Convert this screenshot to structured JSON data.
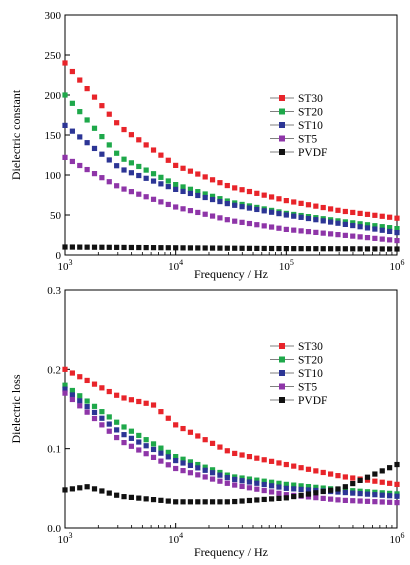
{
  "chart_data": [
    {
      "type": "scatter",
      "xscale": "log",
      "xlim": [
        1000,
        1000000
      ],
      "ylim": [
        0,
        300
      ],
      "xlabel": "Frequency / Hz",
      "ylabel": "Dielectric constant",
      "x_ticks": [
        1000,
        10000,
        100000,
        1000000
      ],
      "x_tick_labels": [
        {
          "base": "10",
          "exp": "3"
        },
        {
          "base": "10",
          "exp": "4"
        },
        {
          "base": "10",
          "exp": "5"
        },
        {
          "base": "10",
          "exp": "6"
        }
      ],
      "y_ticks": [
        0,
        50,
        100,
        150,
        200,
        250,
        300
      ],
      "y_tick_labels": [
        "0",
        "50",
        "100",
        "150",
        "200",
        "250",
        "300"
      ],
      "legend_position": "right",
      "series": [
        {
          "name": "ST30",
          "color": "#e8242a",
          "x_log10": [
            3.0,
            3.5,
            4.0,
            4.5,
            5.0,
            5.5,
            6.0
          ],
          "y": [
            240,
            160,
            112,
            85,
            68,
            55,
            46
          ]
        },
        {
          "name": "ST20",
          "color": "#1ea84a",
          "x_log10": [
            3.0,
            3.5,
            4.0,
            4.5,
            5.0,
            5.5,
            6.0
          ],
          "y": [
            200,
            122,
            88,
            66,
            52,
            42,
            33
          ]
        },
        {
          "name": "ST10",
          "color": "#2c3595",
          "x_log10": [
            3.0,
            3.5,
            4.0,
            4.5,
            5.0,
            5.5,
            6.0
          ],
          "y": [
            162,
            108,
            82,
            63,
            50,
            39,
            28
          ]
        },
        {
          "name": "ST5",
          "color": "#8e35a8",
          "x_log10": [
            3.0,
            3.5,
            4.0,
            4.5,
            5.0,
            5.5,
            6.0
          ],
          "y": [
            122,
            84,
            60,
            43,
            32,
            25,
            18
          ]
        },
        {
          "name": "PVDF",
          "color": "#111111",
          "x_log10": [
            3.0,
            3.5,
            4.0,
            4.5,
            5.0,
            5.5,
            6.0
          ],
          "y": [
            10,
            9.5,
            9,
            8.5,
            8,
            7.8,
            7.5
          ]
        }
      ]
    },
    {
      "type": "scatter",
      "xscale": "log",
      "xlim": [
        1000,
        1000000
      ],
      "ylim": [
        0,
        0.3
      ],
      "xlabel": "Frequency / Hz",
      "ylabel": "Dielectric loss",
      "x_ticks": [
        1000,
        10000,
        1000000
      ],
      "x_tick_labels": [
        {
          "base": "10",
          "exp": "3"
        },
        {
          "base": "10",
          "exp": "4"
        },
        {
          "base": "10",
          "exp": "6"
        }
      ],
      "y_ticks": [
        0,
        0.1,
        0.2,
        0.3
      ],
      "y_tick_labels": [
        "0.0",
        "0.1",
        "0.2",
        "0.3"
      ],
      "legend_position": "right",
      "series": [
        {
          "name": "ST30",
          "color": "#e8242a",
          "x_log10": [
            3.0,
            3.5,
            3.8,
            4.0,
            4.5,
            5.0,
            5.5,
            6.0
          ],
          "y": [
            0.2,
            0.165,
            0.155,
            0.13,
            0.095,
            0.08,
            0.065,
            0.055
          ]
        },
        {
          "name": "ST20",
          "color": "#1ea84a",
          "x_log10": [
            3.0,
            3.5,
            4.0,
            4.5,
            5.0,
            5.5,
            6.0
          ],
          "y": [
            0.18,
            0.13,
            0.09,
            0.065,
            0.055,
            0.048,
            0.043
          ]
        },
        {
          "name": "ST10",
          "color": "#2c3595",
          "x_log10": [
            3.0,
            3.5,
            4.0,
            4.5,
            5.0,
            5.5,
            6.0
          ],
          "y": [
            0.175,
            0.12,
            0.085,
            0.062,
            0.05,
            0.045,
            0.04
          ]
        },
        {
          "name": "ST5",
          "color": "#8e35a8",
          "x_log10": [
            3.0,
            3.5,
            4.0,
            4.5,
            5.0,
            5.5,
            6.0
          ],
          "y": [
            0.17,
            0.11,
            0.075,
            0.055,
            0.042,
            0.035,
            0.032
          ]
        },
        {
          "name": "PVDF",
          "color": "#111111",
          "x_log10": [
            3.0,
            3.2,
            3.5,
            4.0,
            4.5,
            5.0,
            5.5,
            6.0
          ],
          "y": [
            0.048,
            0.052,
            0.04,
            0.033,
            0.033,
            0.038,
            0.05,
            0.08
          ]
        }
      ]
    }
  ]
}
